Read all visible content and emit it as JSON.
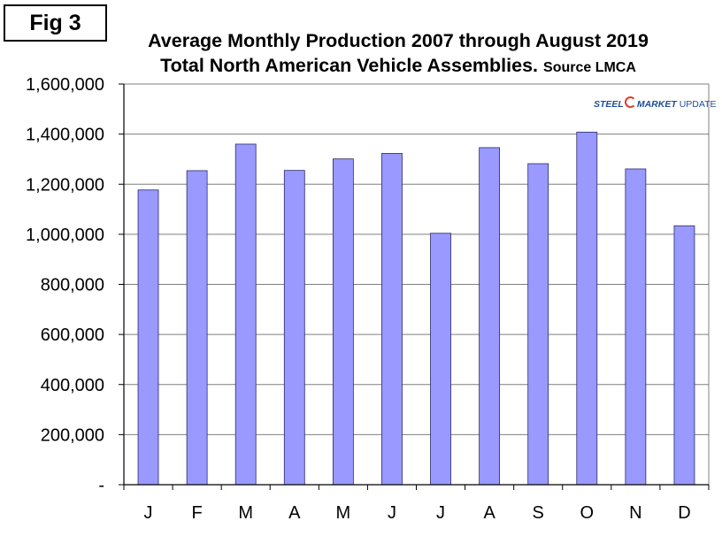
{
  "fig_label": "Fig 3",
  "title_line1": "Average Monthly Production 2007 through August 2019",
  "title_line2": "Total North American Vehicle Assemblies.",
  "title_source": "Source LMCA",
  "logo": {
    "part1": "STEEL",
    "part2": "MARKET",
    "part3": "UPDATE"
  },
  "colors": {
    "bar": "#9999ff",
    "bar_stroke": "#2a2a66",
    "grid": "#7f7f7f"
  },
  "chart_data": {
    "type": "bar",
    "title": "Average Monthly Production 2007 through August 2019 Total North American Vehicle Assemblies. Source LMCA",
    "categories": [
      "J",
      "F",
      "M",
      "A",
      "M",
      "J",
      "J",
      "A",
      "S",
      "O",
      "N",
      "D"
    ],
    "values": [
      1177000,
      1254000,
      1360000,
      1255000,
      1301000,
      1323000,
      1004000,
      1346000,
      1282000,
      1408000,
      1261000,
      1034000
    ],
    "ylim": [
      0,
      1600000
    ],
    "ytick_values": [
      0,
      200000,
      400000,
      600000,
      800000,
      1000000,
      1200000,
      1400000,
      1600000
    ],
    "ytick_labels": [
      "-",
      "200,000",
      "400,000",
      "600,000",
      "800,000",
      "1,000,000",
      "1,200,000",
      "1,400,000",
      "1,600,000"
    ],
    "grid": true,
    "xlabel": "",
    "ylabel": ""
  }
}
